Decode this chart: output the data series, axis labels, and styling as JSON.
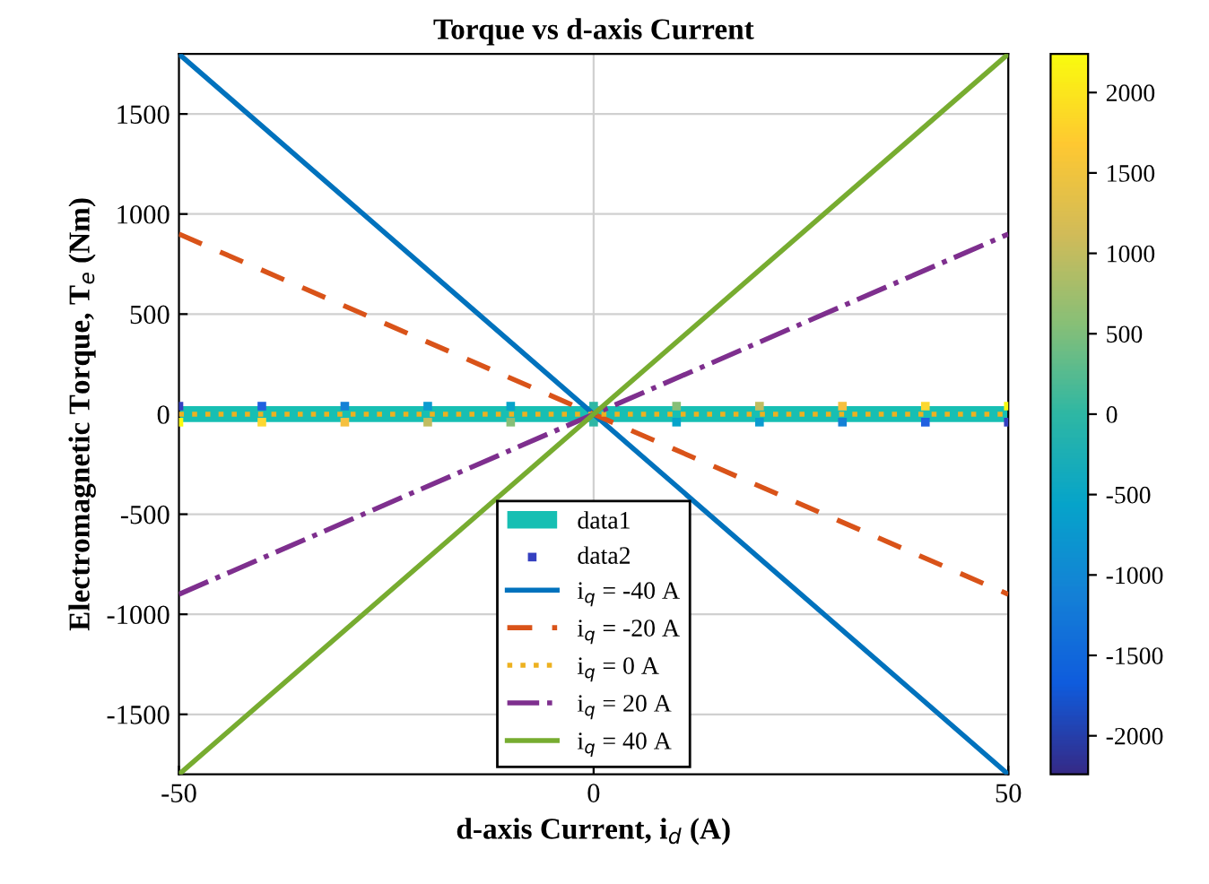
{
  "chart_data": {
    "type": "line",
    "title": "Torque vs d-axis Current",
    "xlabel": "d-axis Current, i$_{d}$ (A)",
    "ylabel": "Electromagnetic Torque, T$_{e}$ (Nm)",
    "xlim": [
      -50,
      50
    ],
    "xticks": [
      -50,
      0,
      50
    ],
    "ylim": [
      -1800,
      1800
    ],
    "yticks": [
      -1500,
      -1000,
      -500,
      0,
      500,
      1000,
      1500
    ],
    "clim": [
      -2240,
      2240
    ],
    "cticks": [
      -2000,
      -1500,
      -1000,
      -500,
      0,
      500,
      1000,
      1500,
      2000
    ],
    "grid": true,
    "legend": "bottom",
    "bands": [
      {
        "axis": "y",
        "from": -40,
        "to": 40,
        "label": "data1",
        "color": "#17bfb3"
      }
    ],
    "series": [
      {
        "name": "data2",
        "type": "scatter",
        "marker": "square",
        "x": [
          -50,
          -40,
          -30,
          -20,
          -10,
          0,
          10,
          20,
          30,
          40,
          50,
          -50,
          -40,
          -30,
          -20,
          -10,
          0,
          10,
          20,
          30,
          40,
          50
        ],
        "values": [
          40,
          40,
          40,
          40,
          40,
          40,
          40,
          40,
          40,
          40,
          40,
          -40,
          -40,
          -40,
          -40,
          -40,
          -40,
          -40,
          -40,
          -40,
          -40,
          -40
        ],
        "colors": [
          "#3540c0",
          "#2060e0",
          "#1481d6",
          "#0a9bd0",
          "#06a4ca",
          "#2eb7a4",
          "#87bf77",
          "#c0bd60",
          "#f5c040",
          "#fcd830",
          "#f9fb0e",
          "#f9fb0e",
          "#fcd830",
          "#f5c040",
          "#c0bd60",
          "#87bf77",
          "#2eb7a4",
          "#06a4ca",
          "#0a9bd0",
          "#1481d6",
          "#2060e0",
          "#3540c0"
        ]
      },
      {
        "name": "i$_{q}$ = -40 A",
        "color": "#0072bd",
        "line_style": "solid",
        "x": [
          -50,
          50
        ],
        "values": [
          1800,
          -1800
        ]
      },
      {
        "name": "i$_{q}$ = -20 A",
        "color": "#d95319",
        "line_style": "dashed",
        "x": [
          -50,
          50
        ],
        "values": [
          900,
          -900
        ]
      },
      {
        "name": "i$_{q}$ = 0 A",
        "color": "#edb120",
        "line_style": "dotted",
        "x": [
          -50,
          50
        ],
        "values": [
          0,
          0
        ]
      },
      {
        "name": "i$_{q}$ = 20 A",
        "color": "#7e2f8e",
        "line_style": "dashdot",
        "x": [
          -50,
          50
        ],
        "values": [
          -900,
          900
        ]
      },
      {
        "name": "i$_{q}$ = 40 A",
        "color": "#77ac30",
        "line_style": "solid",
        "x": [
          -50,
          50
        ],
        "values": [
          -1800,
          1800
        ]
      }
    ]
  }
}
